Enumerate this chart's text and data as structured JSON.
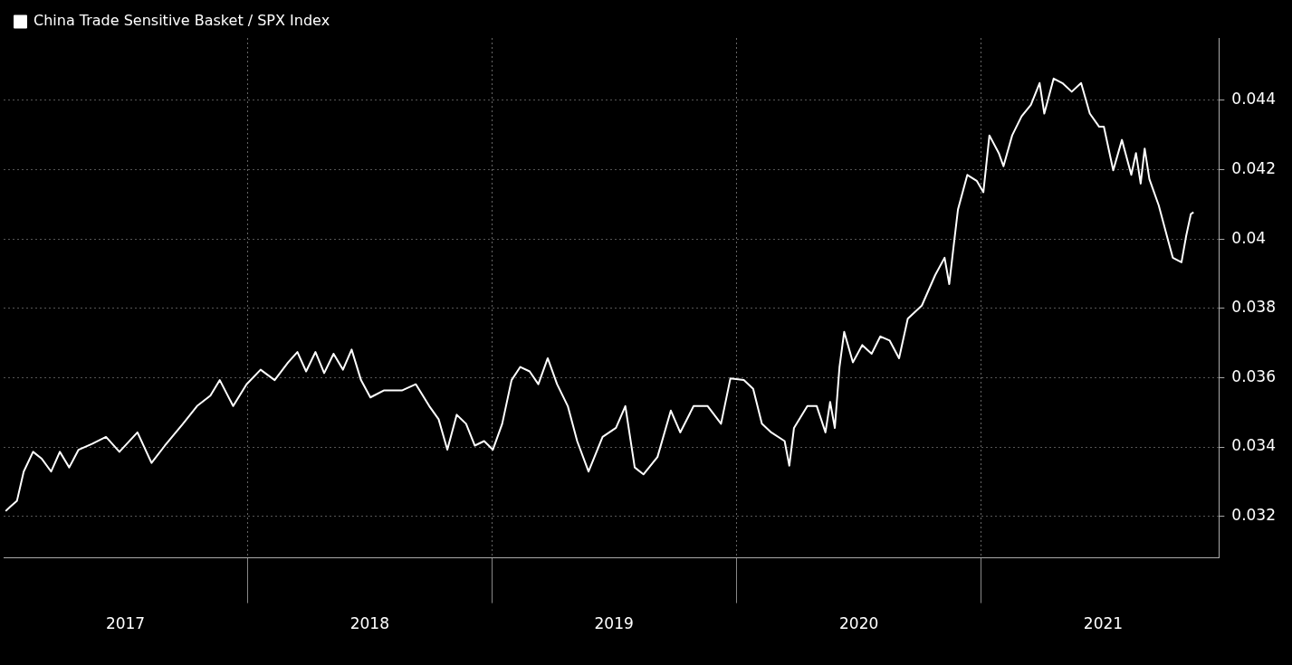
{
  "chart_data": {
    "type": "line",
    "legend": "top left",
    "grid": true,
    "marker": "none",
    "line_style": "solid",
    "xlim": [
      "2017-01-01",
      "2021-12-22"
    ],
    "xticks": [
      {
        "value": "2017-07-02",
        "label": "2017"
      },
      {
        "value": "2018-01-01",
        "label": null
      },
      {
        "value": "2018-07-02",
        "label": "2018"
      },
      {
        "value": "2019-01-01",
        "label": null
      },
      {
        "value": "2019-07-02",
        "label": "2019"
      },
      {
        "value": "2020-01-01",
        "label": null
      },
      {
        "value": "2020-07-02",
        "label": "2020"
      },
      {
        "value": "2021-01-01",
        "label": null
      },
      {
        "value": "2021-07-02",
        "label": "2021"
      }
    ],
    "ylim": [
      0.0308,
      0.0458
    ],
    "yticks": [
      0.032,
      0.034,
      0.036,
      0.038,
      0.04,
      0.042,
      0.044
    ],
    "series": [
      {
        "name": "China Trade Sensitive Basket / SPX Index",
        "color": "#ffffff",
        "x": [
          "2017-01-04",
          "2017-01-11",
          "2017-01-21",
          "2017-01-31",
          "2017-02-14",
          "2017-02-27",
          "2017-03-13",
          "2017-03-26",
          "2017-04-09",
          "2017-04-23",
          "2017-05-13",
          "2017-06-03",
          "2017-06-23",
          "2017-07-20",
          "2017-08-10",
          "2017-08-30",
          "2017-09-26",
          "2017-10-17",
          "2017-11-06",
          "2017-11-20",
          "2017-12-10",
          "2017-12-30",
          "2018-01-20",
          "2018-02-10",
          "2018-03-02",
          "2018-03-16",
          "2018-03-29",
          "2018-04-12",
          "2018-04-25",
          "2018-05-09",
          "2018-05-23",
          "2018-06-05",
          "2018-06-19",
          "2018-07-03",
          "2018-07-23",
          "2018-08-19",
          "2018-09-09",
          "2018-09-29",
          "2018-10-13",
          "2018-10-26",
          "2018-11-09",
          "2018-11-23",
          "2018-12-06",
          "2018-12-20",
          "2019-01-02",
          "2019-01-16",
          "2019-01-30",
          "2019-02-12",
          "2019-02-26",
          "2019-03-11",
          "2019-03-25",
          "2019-04-08",
          "2019-04-24",
          "2019-05-08",
          "2019-05-25",
          "2019-06-15",
          "2019-07-05",
          "2019-07-19",
          "2019-08-02",
          "2019-08-15",
          "2019-09-05",
          "2019-09-25",
          "2019-10-09",
          "2019-10-29",
          "2019-11-19",
          "2019-12-09",
          "2019-12-23",
          "2020-01-12",
          "2020-01-26",
          "2020-02-08",
          "2020-02-22",
          "2020-03-13",
          "2020-03-20",
          "2020-03-27",
          "2020-04-16",
          "2020-04-30",
          "2020-05-13",
          "2020-05-20",
          "2020-05-27",
          "2020-06-03",
          "2020-06-10",
          "2020-06-23",
          "2020-07-07",
          "2020-07-21",
          "2020-08-03",
          "2020-08-17",
          "2020-08-31",
          "2020-09-13",
          "2020-10-04",
          "2020-10-24",
          "2020-11-07",
          "2020-11-14",
          "2020-11-20",
          "2020-11-27",
          "2020-12-11",
          "2020-12-25",
          "2021-01-04",
          "2021-01-13",
          "2021-01-27",
          "2021-02-03",
          "2021-02-16",
          "2021-03-02",
          "2021-03-16",
          "2021-03-29",
          "2021-04-05",
          "2021-04-19",
          "2021-05-02",
          "2021-05-16",
          "2021-05-30",
          "2021-06-12",
          "2021-06-26",
          "2021-07-03",
          "2021-07-17",
          "2021-07-30",
          "2021-08-13",
          "2021-08-20",
          "2021-08-27",
          "2021-09-02",
          "2021-09-09",
          "2021-09-23",
          "2021-10-07",
          "2021-10-14",
          "2021-10-27",
          "2021-11-03",
          "2021-11-10",
          "2021-11-14"
        ],
        "values": [
          0.03215,
          0.03228,
          0.03245,
          0.03329,
          0.03386,
          0.03366,
          0.03329,
          0.03386,
          0.03341,
          0.03392,
          0.03409,
          0.03429,
          0.03386,
          0.03442,
          0.03354,
          0.03404,
          0.03467,
          0.03518,
          0.03548,
          0.03593,
          0.03518,
          0.03581,
          0.03623,
          0.03593,
          0.03644,
          0.03674,
          0.03618,
          0.03674,
          0.03613,
          0.03669,
          0.03623,
          0.03681,
          0.03593,
          0.03543,
          0.03563,
          0.03563,
          0.03581,
          0.03518,
          0.0348,
          0.03392,
          0.03493,
          0.03467,
          0.03404,
          0.03417,
          0.03392,
          0.03467,
          0.03593,
          0.03631,
          0.03618,
          0.03581,
          0.03656,
          0.03581,
          0.03518,
          0.03417,
          0.03329,
          0.03429,
          0.03455,
          0.03518,
          0.03341,
          0.03321,
          0.03371,
          0.03505,
          0.03442,
          0.03518,
          0.03518,
          0.03467,
          0.03598,
          0.03593,
          0.03568,
          0.03467,
          0.03442,
          0.03417,
          0.03346,
          0.03455,
          0.03518,
          0.03518,
          0.03442,
          0.0353,
          0.03455,
          0.03631,
          0.03732,
          0.03644,
          0.03694,
          0.03669,
          0.03719,
          0.03707,
          0.03656,
          0.0377,
          0.03808,
          0.03896,
          0.03946,
          0.0387,
          0.03971,
          0.04085,
          0.04185,
          0.04168,
          0.04135,
          0.04299,
          0.04248,
          0.0421,
          0.04299,
          0.04354,
          0.04387,
          0.0445,
          0.04362,
          0.04463,
          0.0445,
          0.04425,
          0.0445,
          0.04362,
          0.04324,
          0.04324,
          0.04198,
          0.04286,
          0.04185,
          0.04248,
          0.0416,
          0.04261,
          0.04173,
          0.04097,
          0.03996,
          0.03946,
          0.03933,
          0.04009,
          0.04072,
          0.04077
        ]
      }
    ]
  }
}
